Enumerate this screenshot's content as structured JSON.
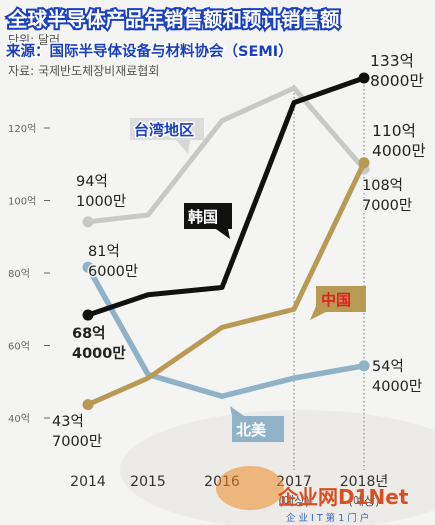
{
  "header": {
    "title": "全球半导体产品年销售额和预计销售额",
    "source_cn": "来源：国际半导体设备与材料协会（SEMI）",
    "unit_ko": "단위: 달러",
    "source_ko": "자료: 국제반도체장비재료협회"
  },
  "watermark": {
    "brand": "企业网D1Net",
    "tagline": "企 业 I T 第 1 门 户"
  },
  "chart_data": {
    "type": "line",
    "x": [
      "2014",
      "2015",
      "2016",
      "2017",
      "2018"
    ],
    "x_tick_labels": [
      "2014",
      "2015",
      "2016",
      "2017",
      "2018년"
    ],
    "x_tick_sublabels": [
      "",
      "",
      "",
      "(예상)",
      "(예상)"
    ],
    "y_ticks": [
      40,
      60,
      80,
      100,
      120
    ],
    "y_tick_labels": [
      "40억",
      "60억",
      "80억",
      "100억",
      "120억"
    ],
    "ylim": [
      30,
      140
    ],
    "grid": false,
    "legend": "inline-labels",
    "series": [
      {
        "name": "台湾地区",
        "color": "#c8c8c8",
        "values": [
          94.1,
          96,
          122,
          131,
          108.7
        ]
      },
      {
        "name": "韩国",
        "color": "#111111",
        "values": [
          68.4,
          74,
          76,
          127,
          133.8
        ]
      },
      {
        "name": "中国",
        "color": "#b89a55",
        "values": [
          43.7,
          51,
          65,
          70,
          110.4
        ]
      },
      {
        "name": "北美",
        "color": "#8fb2c8",
        "values": [
          81.6,
          52,
          46,
          51,
          54.4
        ]
      }
    ],
    "annotations": [
      {
        "series": "台湾地区",
        "lines": [
          "94억",
          "1000만"
        ]
      },
      {
        "series": "台湾地区",
        "lines": [
          "108억",
          "7000만"
        ]
      },
      {
        "series": "韩国",
        "lines": [
          "68억",
          "4000만"
        ]
      },
      {
        "series": "韩国",
        "lines": [
          "133억",
          "8000만"
        ]
      },
      {
        "series": "中国",
        "lines": [
          "43억",
          "7000만"
        ]
      },
      {
        "series": "中国",
        "lines": [
          "110억",
          "4000만"
        ]
      },
      {
        "series": "北美",
        "lines": [
          "81억",
          "6000만"
        ]
      },
      {
        "series": "北美",
        "lines": [
          "54억",
          "4000만"
        ]
      }
    ]
  }
}
